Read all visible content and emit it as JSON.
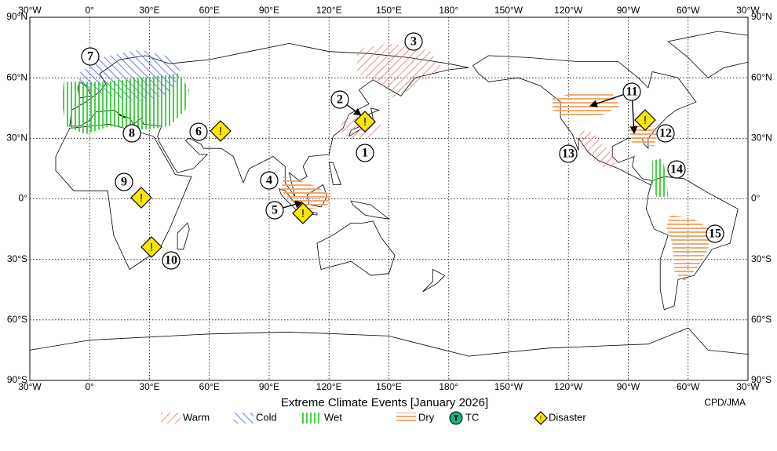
{
  "map": {
    "title": "Extreme Climate Events [January 2026]",
    "credit": "CPD/JMA",
    "lon_labels": [
      "30°W",
      "0°",
      "30°E",
      "60°E",
      "90°E",
      "120°E",
      "150°E",
      "180°",
      "150°W",
      "120°W",
      "90°W",
      "60°W",
      "30°W"
    ],
    "lat_labels": [
      "90°N",
      "60°N",
      "30°N",
      "0°",
      "30°S",
      "60°S",
      "90°S"
    ],
    "legend": [
      "Warm",
      "Cold",
      "Wet",
      "Dry",
      "TC",
      "Disaster"
    ],
    "tc_symbol": "T",
    "disaster_symbol": "!",
    "event_numbers": [
      "1",
      "2",
      "3",
      "4",
      "5",
      "6",
      "7",
      "8",
      "9",
      "10",
      "11",
      "12",
      "13",
      "14",
      "15"
    ]
  }
}
